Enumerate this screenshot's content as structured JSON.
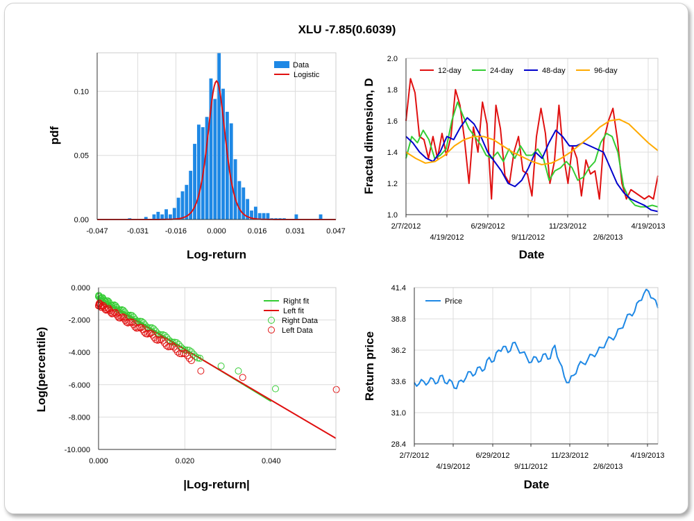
{
  "title": "XLU -7.85(0.6039)",
  "colors": {
    "blue": "#1e88e5",
    "red": "#e01010",
    "green": "#33cc33",
    "navy": "#0000cc",
    "orange": "#ffaa00"
  },
  "chart_data": [
    {
      "type": "bar",
      "panel": "top-left",
      "xlabel": "Log-return",
      "ylabel": "pdf",
      "xlim": [
        -0.047,
        0.047
      ],
      "ylim": [
        0,
        0.13
      ],
      "xticks": [
        "-0.047",
        "-0.031",
        "-0.016",
        "0.000",
        "0.016",
        "0.031",
        "0.047"
      ],
      "yticks": [
        "0.00",
        "0.05",
        "0.10"
      ],
      "legend": [
        "Data",
        "Logistic"
      ],
      "bins_x": [
        -0.035,
        -0.0334,
        -0.0318,
        -0.0302,
        -0.0286,
        -0.027,
        -0.0254,
        -0.0238,
        -0.0222,
        -0.0206,
        -0.019,
        -0.0174,
        -0.0158,
        -0.0142,
        -0.0126,
        -0.011,
        -0.0094,
        -0.0078,
        -0.0062,
        -0.0046,
        -0.003,
        -0.0014,
        0.0002,
        0.0018,
        0.0034,
        0.005,
        0.0066,
        0.0082,
        0.0098,
        0.0114,
        0.013,
        0.0146,
        0.0162,
        0.0178,
        0.0194,
        0.021,
        0.0226,
        0.0242,
        0.0258,
        0.0274,
        0.029,
        0.0306,
        0.0322,
        0.0338,
        0.0354,
        0.037,
        0.0386,
        0.0402
      ],
      "bin_values": [
        0.001,
        0,
        0,
        0,
        0.002,
        0,
        0.004,
        0.006,
        0.004,
        0.008,
        0.004,
        0.009,
        0.017,
        0.022,
        0.027,
        0.038,
        0.059,
        0.074,
        0.072,
        0.08,
        0.11,
        0.094,
        0.13,
        0.102,
        0.084,
        0.075,
        0.047,
        0.03,
        0.025,
        0.016,
        0.007,
        0.01,
        0.005,
        0.005,
        0.005,
        0.001,
        0.001,
        0.001,
        0.001,
        0,
        0,
        0.004,
        0,
        0,
        0,
        0,
        0,
        0.004
      ],
      "fit": {
        "type": "logistic",
        "mu": 0.0,
        "s": 0.00231,
        "peak": 0.108
      }
    },
    {
      "type": "line",
      "panel": "top-right",
      "xlabel": "Date",
      "ylabel": "Fractal dimension, D",
      "xticks_upper": [
        "2/7/2012",
        "6/29/2012",
        "11/23/2012",
        "4/19/2013"
      ],
      "xticks_lower": [
        "4/19/2012",
        "9/11/2012",
        "2/6/2013"
      ],
      "ylim": [
        1.0,
        2.0
      ],
      "yticks": [
        "1.0",
        "1.2",
        "1.4",
        "1.6",
        "1.8",
        "2.0"
      ],
      "series": [
        {
          "name": "12-day",
          "values": [
            1.6,
            1.87,
            1.78,
            1.5,
            1.48,
            1.36,
            1.5,
            1.36,
            1.52,
            1.38,
            1.5,
            1.8,
            1.7,
            1.48,
            1.2,
            1.56,
            1.4,
            1.72,
            1.58,
            1.1,
            1.7,
            1.55,
            1.25,
            1.2,
            1.4,
            1.5,
            1.28,
            1.26,
            1.12,
            1.5,
            1.68,
            1.52,
            1.2,
            1.34,
            1.7,
            1.38,
            1.2,
            1.44,
            1.36,
            1.12,
            1.35,
            1.26,
            1.28,
            1.1,
            1.48,
            1.6,
            1.68,
            1.48,
            1.2,
            1.1,
            1.16,
            1.14,
            1.12,
            1.1,
            1.12,
            1.1,
            1.25
          ]
        },
        {
          "name": "24-day",
          "values": [
            1.36,
            1.5,
            1.46,
            1.54,
            1.48,
            1.36,
            1.38,
            1.42,
            1.6,
            1.72,
            1.63,
            1.55,
            1.5,
            1.45,
            1.38,
            1.36,
            1.4,
            1.34,
            1.42,
            1.36,
            1.44,
            1.38,
            1.38,
            1.42,
            1.36,
            1.22,
            1.28,
            1.3,
            1.34,
            1.3,
            1.22,
            1.24,
            1.3,
            1.34,
            1.46,
            1.52,
            1.5,
            1.4,
            1.18,
            1.1,
            1.06,
            1.05,
            1.05,
            1.06,
            1.05
          ]
        },
        {
          "name": "48-day",
          "values": [
            1.5,
            1.46,
            1.4,
            1.36,
            1.34,
            1.4,
            1.5,
            1.48,
            1.56,
            1.62,
            1.58,
            1.5,
            1.4,
            1.34,
            1.28,
            1.2,
            1.18,
            1.22,
            1.3,
            1.4,
            1.36,
            1.46,
            1.54,
            1.5,
            1.44,
            1.44,
            1.46,
            1.44,
            1.42,
            1.4,
            1.3,
            1.2,
            1.14,
            1.1,
            1.08,
            1.06,
            1.03,
            1.02
          ]
        },
        {
          "name": "96-day",
          "values": [
            1.4,
            1.36,
            1.33,
            1.34,
            1.38,
            1.44,
            1.48,
            1.5,
            1.5,
            1.48,
            1.44,
            1.4,
            1.37,
            1.34,
            1.32,
            1.33,
            1.36,
            1.4,
            1.45,
            1.5,
            1.56,
            1.6,
            1.61,
            1.58,
            1.52,
            1.46,
            1.41
          ]
        }
      ]
    },
    {
      "type": "scatter",
      "panel": "bottom-left",
      "xlabel": "|Log-return|",
      "ylabel": "Log(percentile)",
      "xlim": [
        0,
        0.055
      ],
      "ylim": [
        -10,
        0
      ],
      "xticks": [
        "0.000",
        "0.020",
        "0.040"
      ],
      "yticks": [
        "0.000",
        "-2.000",
        "-4.000",
        "-6.000",
        "-8.000",
        "-10.000"
      ],
      "legend": [
        "Right fit",
        "Left fit",
        "Right Data",
        "Left Data"
      ],
      "right_fit": {
        "intercept": -0.55,
        "slope": -162,
        "x_end": 0.04
      },
      "left_fit": {
        "intercept": -0.68,
        "slope": -157,
        "x_end": 0.055
      },
      "right_extra_points": [
        [
          0.0284,
          -4.85
        ],
        [
          0.0324,
          -5.15
        ],
        [
          0.041,
          -6.25
        ]
      ],
      "left_extra_points": [
        [
          0.0334,
          -5.55
        ],
        [
          0.0551,
          -6.3
        ],
        [
          0.0237,
          -5.15
        ]
      ]
    },
    {
      "type": "line",
      "panel": "bottom-right",
      "xlabel": "Date",
      "ylabel": "Return price",
      "ylim": [
        28.4,
        41.4
      ],
      "yticks": [
        "41.4",
        "38.8",
        "36.2",
        "33.6",
        "31.0",
        "28.4"
      ],
      "xticks_upper": [
        "2/7/2012",
        "6/29/2012",
        "11/23/2012",
        "4/19/2013"
      ],
      "xticks_lower": [
        "4/19/2012",
        "9/11/2012",
        "2/6/2013"
      ],
      "series": [
        {
          "name": "Price",
          "values": [
            33.5,
            33.4,
            33.6,
            33.5,
            33.8,
            33.5,
            34.1,
            33.4,
            33.6,
            33.0,
            33.7,
            33.9,
            34.4,
            34.2,
            34.8,
            34.6,
            35.6,
            35.3,
            36.2,
            36.5,
            36.0,
            36.8,
            36.4,
            36.0,
            35.6,
            35.2,
            35.6,
            35.3,
            35.9,
            35.5,
            36.6,
            35.2,
            34.0,
            33.5,
            34.1,
            34.9,
            35.1,
            35.4,
            35.8,
            36.0,
            36.4,
            36.9,
            37.2,
            37.4,
            38.0,
            38.6,
            39.2,
            39.4,
            40.3,
            40.9,
            41.1,
            40.5,
            39.7
          ]
        }
      ]
    }
  ]
}
